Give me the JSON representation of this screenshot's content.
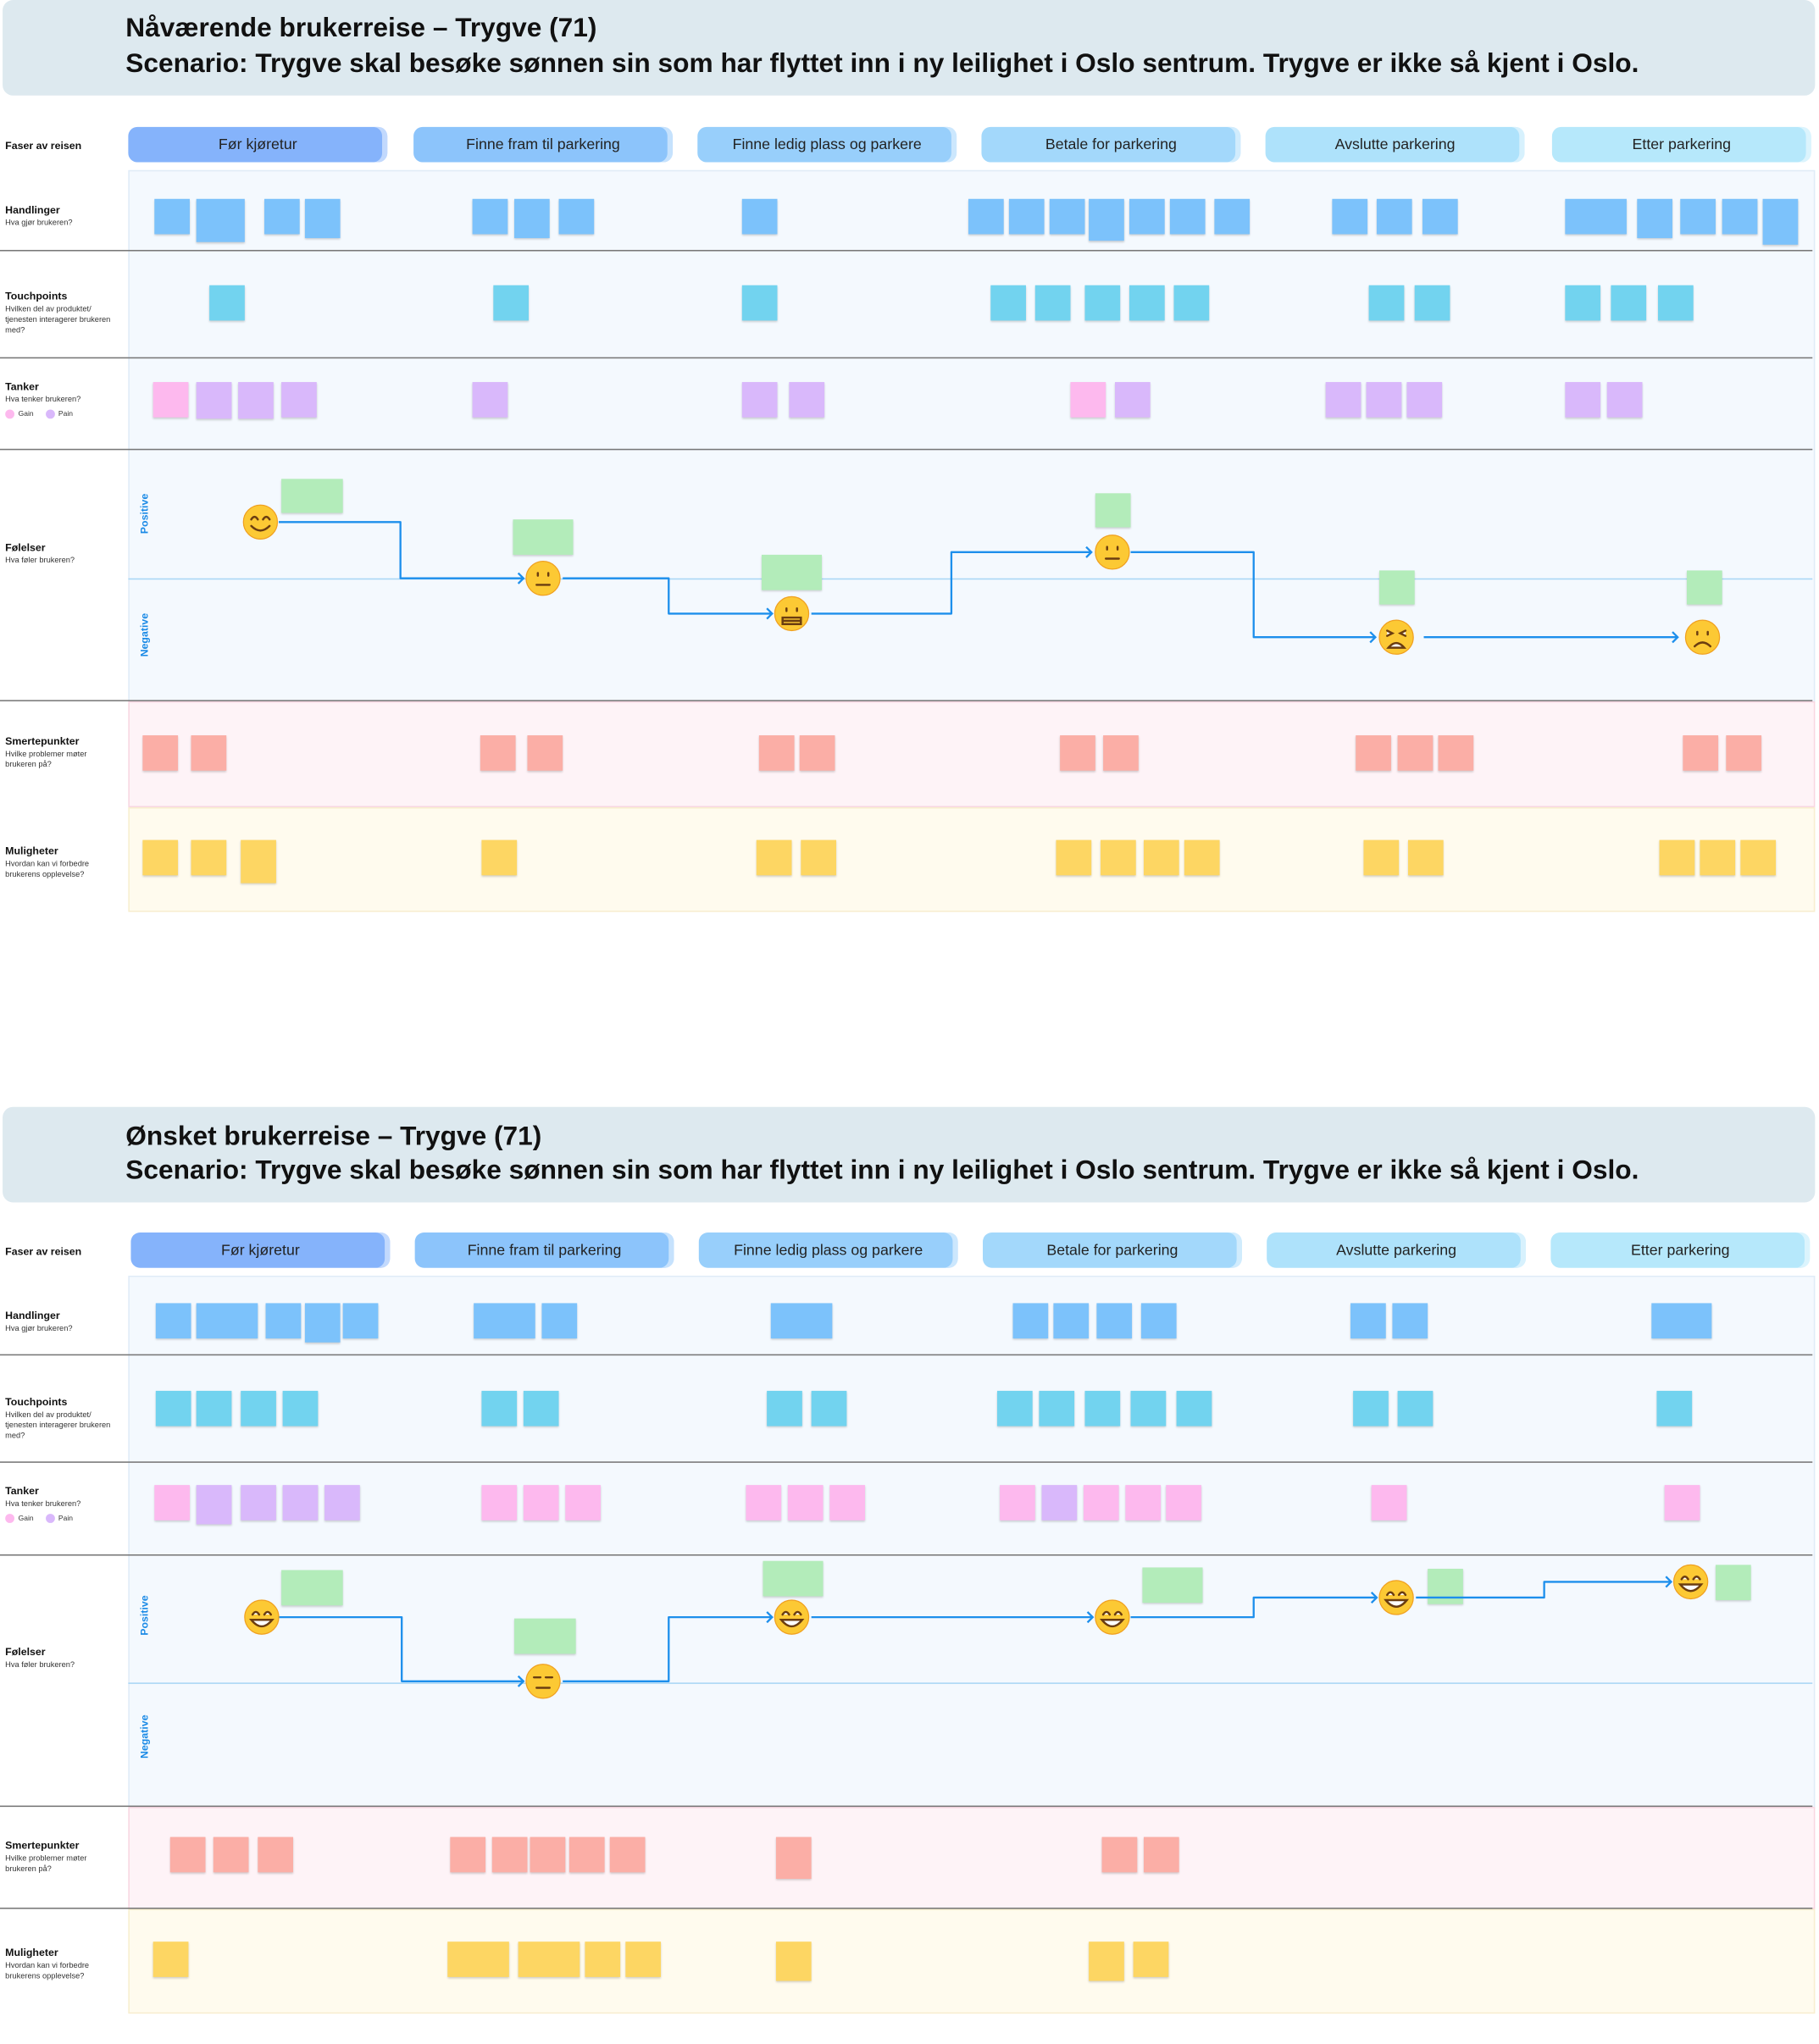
{
  "journeys": [
    {
      "title": "Nåværende brukerreise – Trygve (71)",
      "scenario": "Scenario: Trygve skal besøke sønnen sin som har flyttet inn i ny leilighet i Oslo sentrum. Trygve er ikke så kjent i Oslo.",
      "emotions": [
        "smiling-face-icon",
        "neutral-face-icon",
        "grimacing-face-icon",
        "neutral-face-icon",
        "tired-face-icon",
        "frowning-face-icon"
      ]
    },
    {
      "title": "Ønsket brukerreise – Trygve (71)",
      "scenario": "Scenario: Trygve skal besøke sønnen sin som har flyttet inn i ny leilighet i Oslo sentrum. Trygve er ikke så kjent i Oslo.",
      "emotions": [
        "grinning-face-icon",
        "expressionless-face-icon",
        "grinning-face-icon",
        "grinning-face-icon",
        "grinning-face-icon",
        "grinning-face-icon"
      ]
    }
  ],
  "phases_label": "Faser av reisen",
  "phases": [
    "Før kjøretur",
    "Finne fram til parkering",
    "Finne ledig plass og parkere",
    "Betale for parkering",
    "Avslutte parkering",
    "Etter parkering"
  ],
  "rows": {
    "handlinger": {
      "title": "Handlinger",
      "subtitle": "Hva gjør brukeren?"
    },
    "touchpoints": {
      "title": "Touchpoints",
      "subtitle": "Hvilken del av produktet/ tjenesten interagerer brukeren med?"
    },
    "tanker": {
      "title": "Tanker",
      "subtitle": "Hva tenker brukeren?"
    },
    "folelser": {
      "title": "Følelser",
      "subtitle": "Hva føler brukeren?"
    },
    "smertepunkter": {
      "title": "Smertepunkter",
      "subtitle": "Hvilke problemer møter brukeren på?"
    },
    "muligheter": {
      "title": "Muligheter",
      "subtitle": "Hvordan kan vi forbedre brukerens opplevelse?"
    }
  },
  "legend": {
    "gain": "Gain",
    "pain": "Pain"
  },
  "axis": {
    "positive": "Positive",
    "negative": "Negative"
  },
  "colors": {
    "action": "#7cc2fb",
    "touchpoint": "#72d3ef",
    "gain": "#fdb9ee",
    "pain": "#d9b8fb",
    "feeling": "#b3ecba",
    "painpoint": "#fbaea6",
    "opportunity": "#fdd663",
    "line": "#1d8fec",
    "phases": [
      "#85b3fb",
      "#8cc4fb",
      "#98cffb",
      "#a3d8fb",
      "#aee2fb",
      "#b6e8fb"
    ]
  }
}
